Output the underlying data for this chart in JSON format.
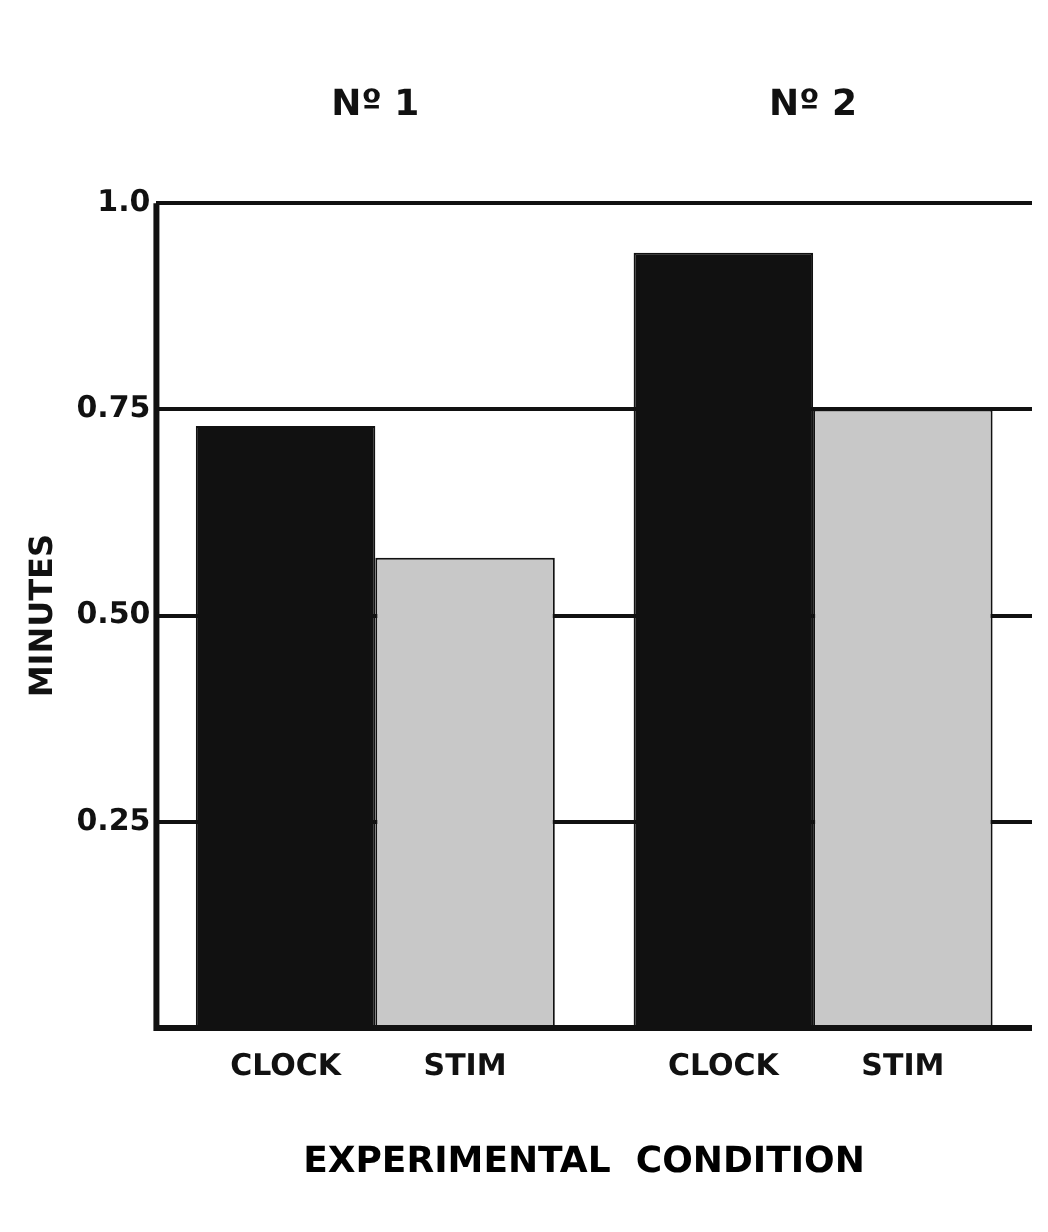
{
  "chart_data": {
    "type": "bar",
    "xlabel": "EXPERIMENTAL  CONDITION",
    "ylabel": "MINUTES",
    "categories": [
      "Nº 1",
      "Nº 2"
    ],
    "series": [
      {
        "name": "CLOCK",
        "color": "#111111",
        "values": [
          0.73,
          0.94
        ]
      },
      {
        "name": "STIM",
        "color": "#c8c8c8",
        "values": [
          0.57,
          0.75
        ]
      }
    ],
    "ylim": [
      0,
      1.0
    ],
    "yticks": [
      {
        "value": 0.25,
        "label": "0.25"
      },
      {
        "value": 0.5,
        "label": "0.50"
      },
      {
        "value": 0.75,
        "label": "0.75"
      },
      {
        "value": 1.0,
        "label": "1.0"
      }
    ],
    "grid": "y",
    "legend": false
  }
}
